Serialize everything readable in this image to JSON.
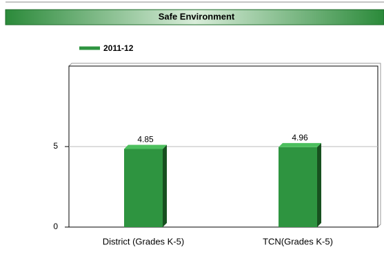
{
  "chart_data": {
    "type": "bar",
    "title": "Safe Environment",
    "categories": [
      "District (Grades K-5)",
      "TCN(Grades K-5)"
    ],
    "series": [
      {
        "name": "2011-12",
        "color": "#2e9440",
        "values": [
          4.85,
          4.96
        ]
      }
    ],
    "ylim": [
      0,
      10
    ],
    "yticks": [
      0,
      5
    ],
    "grid": true,
    "legend": "top-left"
  }
}
